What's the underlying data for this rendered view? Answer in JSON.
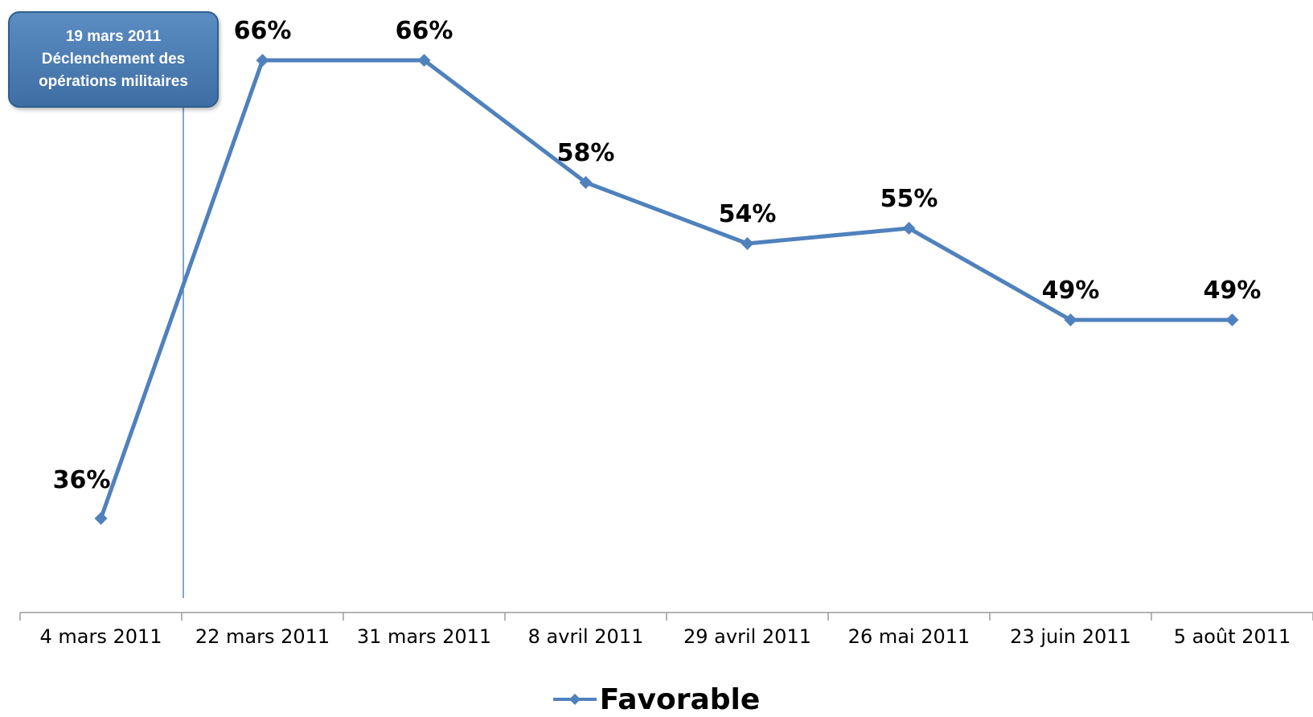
{
  "chart_data": {
    "type": "line",
    "categories": [
      "4 mars 2011",
      "22 mars 2011",
      "31 mars 2011",
      "8 avril 2011",
      "29 avril 2011",
      "26 mai 2011",
      "23 juin 2011",
      "5 août 2011"
    ],
    "series": [
      {
        "name": "Favorable",
        "values": [
          36,
          66,
          66,
          58,
          54,
          55,
          49,
          49
        ],
        "color": "#4f81bd"
      }
    ],
    "data_labels": [
      "36%",
      "66%",
      "66%",
      "58%",
      "54%",
      "55%",
      "49%",
      "49%"
    ],
    "ylim": [
      30,
      70
    ],
    "grid": false,
    "legend": "bottom",
    "annotation": {
      "position": "between 4 mars 2011 and 22 mars 2011",
      "lines": [
        "19 mars 2011",
        "Déclenchement des",
        "opérations militaires"
      ]
    }
  }
}
